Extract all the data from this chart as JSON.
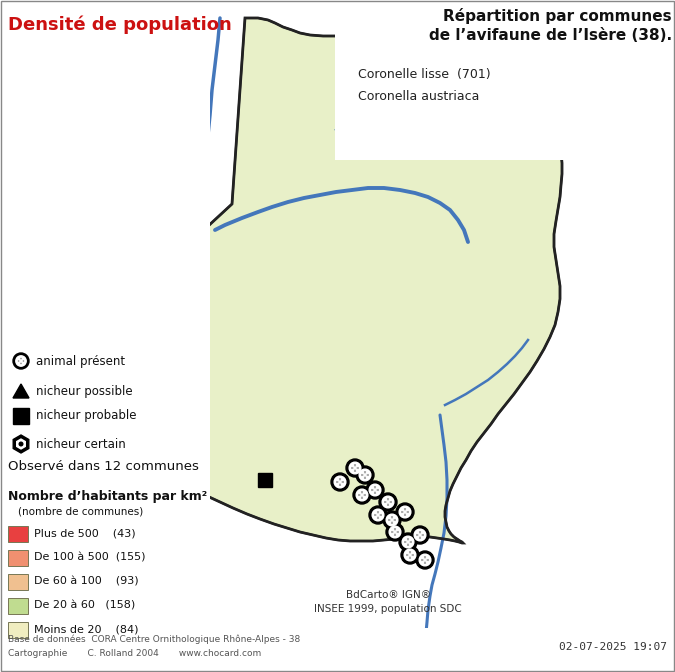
{
  "title_right_line1": "Répartition par communes",
  "title_right_line2": "de l’avifaune de l’Isère (38).",
  "title_left": "Densité de population",
  "species_name": "Coronelle lisse  (701)",
  "species_latin": "Coronella austriaca",
  "observed": "Observé dans 12 communes",
  "legend_title": "Nombre d’habitants par km²",
  "legend_subtitle": "(nombre de communes)",
  "legend_items": [
    {
      "label": "Plus de 500    (43)",
      "color": "#e84040"
    },
    {
      "label": "De 100 à 500  (155)",
      "color": "#f09070"
    },
    {
      "label": "De 60 à 100    (93)",
      "color": "#f0c090"
    },
    {
      "label": "De 20 à 60   (158)",
      "color": "#c0dc90"
    },
    {
      "label": "Moins de 20    (84)",
      "color": "#f0edc0"
    }
  ],
  "symbol_items": [
    {
      "label": "animal présent"
    },
    {
      "label": "nicheur possible"
    },
    {
      "label": "nicheur probable"
    },
    {
      "label": "nicheur certain"
    }
  ],
  "footer_left1": "Base de données  CORA Centre Ornithologique Rhône-Alpes - 38",
  "footer_left2": "Cartographie       C. Rolland 2004       www.chocard.com",
  "footer_right": "02-07-2025 19:07",
  "credit_line1": "BdCarto® IGN®",
  "credit_line2": "INSEE 1999, population SDC",
  "bg_color": "#ffffff",
  "title_left_color": "#cc1111",
  "map_outline_color": "#222222",
  "river_color": "#4477bb"
}
